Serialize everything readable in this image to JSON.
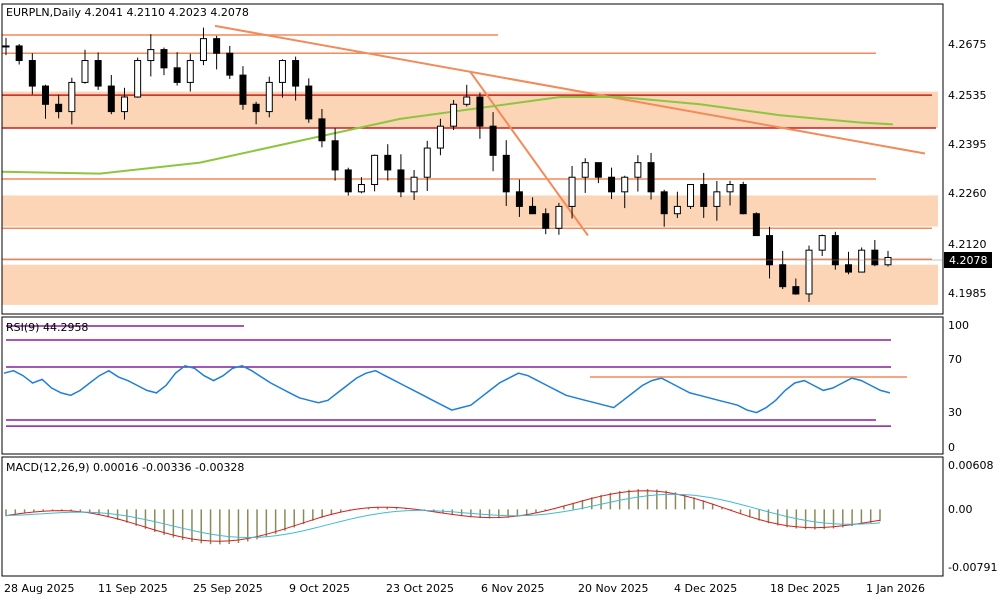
{
  "chart_data": {
    "type": "candlestick",
    "symbol_header": "EURPLN,Daily  4.2041 4.2110 4.2023 4.2078",
    "last_price": "4.2078",
    "price_ticks": [
      "4.2675",
      "4.2535",
      "4.2395",
      "4.2260",
      "4.2120",
      "4.1985"
    ],
    "price_range": [
      4.1925,
      4.2775
    ],
    "date_labels": [
      "28 Aug 2025",
      "11 Sep 2025",
      "25 Sep 2025",
      "9 Oct 2025",
      "23 Oct 2025",
      "6 Nov 2025",
      "20 Nov 2025",
      "4 Dec 2025",
      "18 Dec 2025",
      "1 Jan 2026"
    ],
    "rsi_header": "RSI(9) 44.2958",
    "rsi_ticks": [
      "100",
      "70",
      "30",
      "0"
    ],
    "rsi_levels": [
      87,
      65,
      22,
      17
    ],
    "rsi_values": [
      60,
      62,
      58,
      52,
      55,
      48,
      44,
      42,
      46,
      52,
      58,
      62,
      57,
      54,
      50,
      46,
      44,
      50,
      60,
      66,
      64,
      58,
      54,
      58,
      64,
      66,
      62,
      57,
      52,
      48,
      44,
      40,
      38,
      36,
      38,
      44,
      50,
      56,
      60,
      62,
      58,
      54,
      50,
      46,
      42,
      38,
      34,
      30,
      32,
      34,
      40,
      46,
      52,
      56,
      60,
      58,
      54,
      50,
      46,
      42,
      40,
      38,
      36,
      34,
      32,
      38,
      44,
      50,
      54,
      56,
      52,
      48,
      44,
      42,
      40,
      38,
      36,
      34,
      30,
      28,
      32,
      38,
      46,
      52,
      54,
      50,
      46,
      48,
      52,
      56,
      54,
      50,
      46,
      44
    ],
    "macd_header": "MACD(12,26,9) 0.00016 -0.00336 -0.00328",
    "macd_ticks": [
      "0.00608",
      "0.00",
      "-0.00791"
    ],
    "macd_range": [
      -0.00791,
      0.00608
    ]
  },
  "colors": {
    "bullish": "#ffffff",
    "bearish": "#000000",
    "resistance": "#f28a5a",
    "key_level": "#c81e1e",
    "zone": "#fbd5b5",
    "moving_average": "#8cc63f",
    "rsi": "#1e7fd6",
    "rsi_level": "#8a1ea0",
    "macd": "#d42020",
    "signal": "#3fbbd6",
    "histogram": "#8a8a5a"
  }
}
